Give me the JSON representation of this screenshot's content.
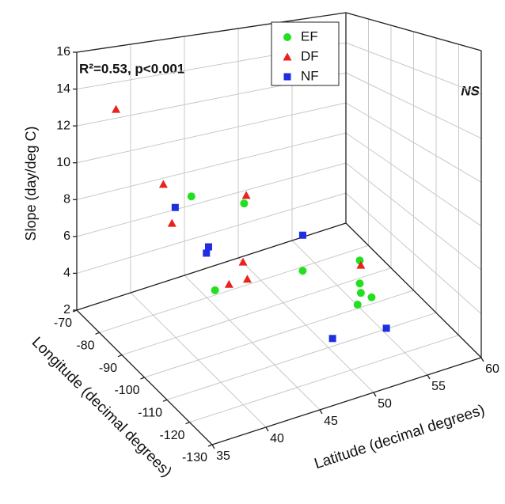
{
  "chart_data": {
    "type": "scatter3d",
    "annotations": [
      "R²=0.53, p<0.001",
      "NS"
    ],
    "xlabel": "Latitude (decimal degrees)",
    "ylabel": "Longitude (decimal degrees)",
    "zlabel": "Slope (day/deg C)",
    "xlim": [
      35,
      60
    ],
    "xticks": [
      35,
      40,
      45,
      50,
      55,
      60
    ],
    "ylim": [
      -70,
      -130
    ],
    "yticks": [
      -70,
      -80,
      -90,
      -100,
      -110,
      -120,
      -130
    ],
    "zlim": [
      2,
      16
    ],
    "zticks": [
      2,
      4,
      6,
      8,
      10,
      12,
      14,
      16
    ],
    "grid": true,
    "legend": "top",
    "series": [
      {
        "name": "EF",
        "color": "#22e01e",
        "marker": "circle",
        "x": [
          42.5,
          47.4,
          44.7,
          49.7,
          55.0,
          55.0,
          55.1,
          56.1,
          54.8
        ],
        "y": [
          -85,
          -85,
          -85,
          -100,
          -100,
          -100,
          -100,
          -100,
          -100
        ],
        "z": [
          8.34,
          7.26,
          3.05,
          4.79,
          4.47,
          3.27,
          2.76,
          2.35,
          2.2
        ]
      },
      {
        "name": "DF",
        "color": "#e8231e",
        "marker": "triangle",
        "x": [
          35.5,
          39.9,
          47.6,
          40.7,
          47.3,
          46.0,
          47.7,
          55.1
        ],
        "y": [
          -85,
          -85,
          -85,
          -85,
          -85,
          -85,
          -85,
          -100
        ],
        "z": [
          13.59,
          9.31,
          7.67,
          7.2,
          4.11,
          3.14,
          3.11,
          4.21
        ]
      },
      {
        "name": "NF",
        "color": "#1f2ee0",
        "marker": "square",
        "x": [
          41.0,
          44.1,
          43.9,
          49.7,
          48.7,
          53.7
        ],
        "y": [
          -85,
          -85,
          -85,
          -100,
          -118,
          -118
        ],
        "z": [
          7.97,
          5.45,
          5.15,
          6.58,
          3.43,
          3.14
        ]
      }
    ]
  }
}
